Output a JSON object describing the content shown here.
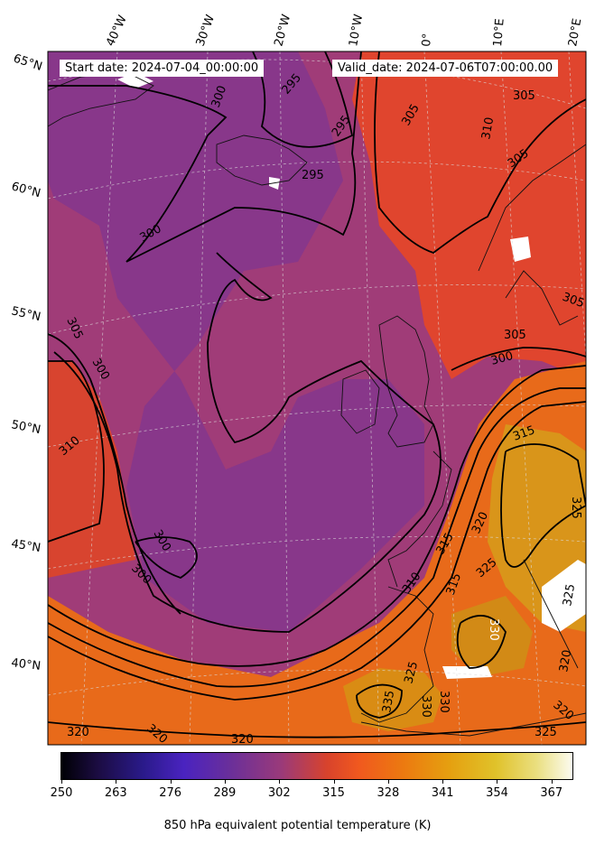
{
  "header": {
    "start_date": "Start date: 2024-07-04_00:00:00",
    "valid_date": "Valid_date: 2024-07-06T07:00:00.00"
  },
  "longitude_labels": [
    "40°W",
    "30°W",
    "20°W",
    "10°W",
    "0°",
    "10°E",
    "20°E"
  ],
  "latitude_labels": [
    "65°N",
    "60°N",
    "55°N",
    "50°N",
    "45°N",
    "40°N"
  ],
  "contour_labels": {
    "k295a": "295",
    "k295b": "295",
    "k295c": "295",
    "k300a": "300",
    "k300b": "300",
    "k300c": "300",
    "k300d": "300",
    "k300e": "300",
    "k300f": "300",
    "k305a": "305",
    "k305b": "305",
    "k305c": "305",
    "k305d": "305",
    "k305e": "305",
    "k305f": "305",
    "k310a": "310",
    "k310b": "310",
    "k310c": "310",
    "k315a": "315",
    "k315b": "315",
    "k315c": "315",
    "k320a": "320",
    "k320b": "320",
    "k320c": "320",
    "k320d": "320",
    "k320e": "320",
    "k320f": "320",
    "k325a": "325",
    "k325b": "325",
    "k325c": "325",
    "k325d": "325",
    "k325e": "325",
    "k330a": "330",
    "k330b": "330",
    "k330c": "330",
    "k335a": "335"
  },
  "colorbar": {
    "ticks": [
      "250",
      "263",
      "276",
      "289",
      "302",
      "315",
      "328",
      "341",
      "354",
      "367"
    ],
    "title": "850 hPa equivalent potential temperature (K)",
    "min": 250,
    "max": 372
  },
  "colors": {
    "cold_purple": "#7a3290",
    "mid_magenta": "#a03c78",
    "warm_red": "#e8452c",
    "hot_orange": "#e27a12",
    "hottest_gold": "#d7a010"
  }
}
